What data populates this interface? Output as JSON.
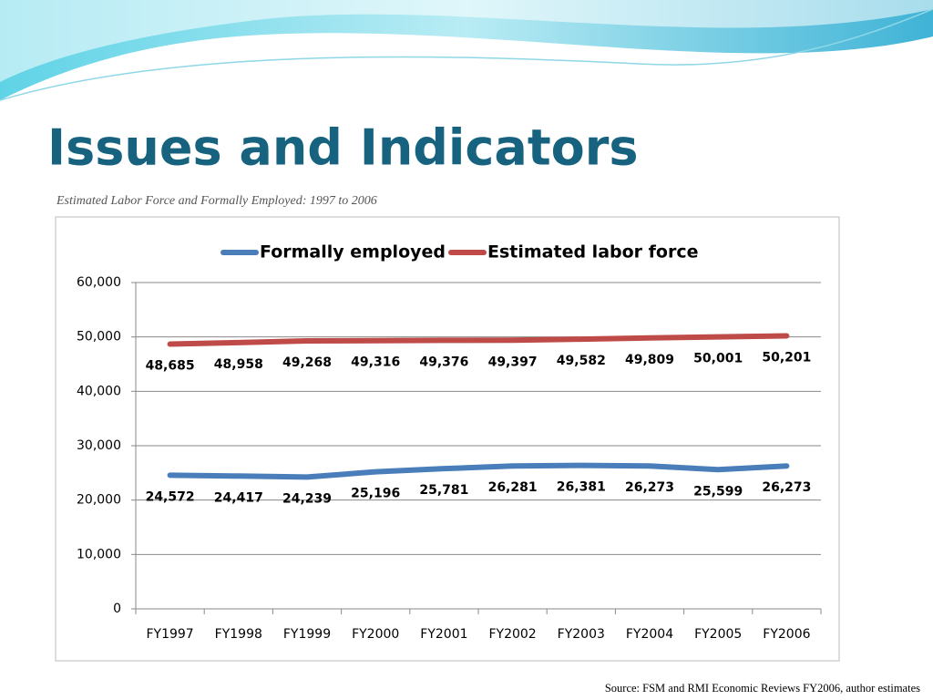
{
  "slide": {
    "title": "Issues and Indicators",
    "subtitle": "Estimated Labor Force and Formally Employed: 1997 to 2006",
    "source": "Source: FSM and RMI Economic Reviews FY2006, author estimates"
  },
  "chart_data": {
    "type": "line",
    "categories": [
      "FY1997",
      "FY1998",
      "FY1999",
      "FY2000",
      "FY2001",
      "FY2002",
      "FY2003",
      "FY2004",
      "FY2005",
      "FY2006"
    ],
    "series": [
      {
        "name": "Formally employed",
        "color": "#4a7ebb",
        "values": [
          24572,
          24417,
          24239,
          25196,
          25781,
          26281,
          26381,
          26273,
          25599,
          26273
        ],
        "value_labels": [
          "24,572",
          "24,417",
          "24,239",
          "25,196",
          "25,781",
          "26,281",
          "26,381",
          "26,273",
          "25,599",
          "26,273"
        ]
      },
      {
        "name": "Estimated labor force",
        "color": "#be4b48",
        "values": [
          48685,
          48958,
          49268,
          49316,
          49376,
          49397,
          49582,
          49809,
          50001,
          50201
        ],
        "value_labels": [
          "48,685",
          "48,958",
          "49,268",
          "49,316",
          "49,376",
          "49,397",
          "49,582",
          "49,809",
          "50,001",
          "50,201"
        ]
      }
    ],
    "ylim": [
      0,
      60000
    ],
    "yticks": [
      0,
      {
        "value": 10000,
        "label": "10,000"
      },
      {
        "value": 20000,
        "label": "20,000"
      },
      {
        "value": 30000,
        "label": "30,000"
      },
      {
        "value": 40000,
        "label": "40,000"
      },
      {
        "value": 50000,
        "label": "50,000"
      },
      {
        "value": 60000,
        "label": "60,000"
      }
    ],
    "grid": true,
    "legend": "top"
  }
}
